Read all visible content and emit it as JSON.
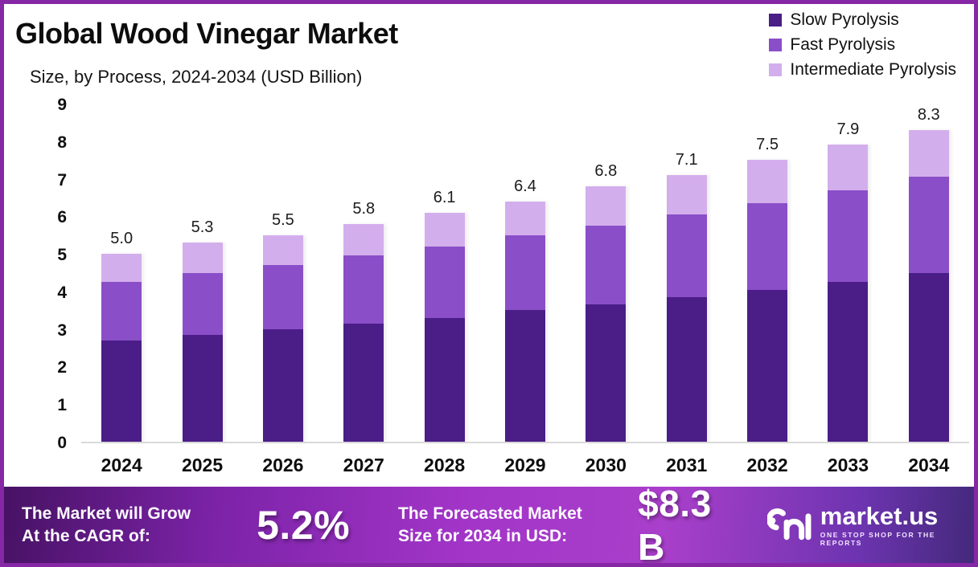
{
  "header": {
    "title": "Global Wood Vinegar Market",
    "subtitle": "Size, by Process, 2024-2034 (USD Billion)"
  },
  "chart_data": {
    "type": "bar",
    "stacked": true,
    "title": "Global Wood Vinegar Market Size, by Process, 2024-2034 (USD Billion)",
    "categories": [
      "2024",
      "2025",
      "2026",
      "2027",
      "2028",
      "2029",
      "2030",
      "2031",
      "2032",
      "2033",
      "2034"
    ],
    "series": [
      {
        "name": "Slow Pyrolysis",
        "color": "#4a1d87",
        "values": [
          2.7,
          2.85,
          3.0,
          3.15,
          3.3,
          3.5,
          3.65,
          3.85,
          4.05,
          4.25,
          4.5
        ]
      },
      {
        "name": "Fast Pyrolysis",
        "color": "#8a4ec8",
        "values": [
          1.55,
          1.65,
          1.7,
          1.8,
          1.9,
          2.0,
          2.1,
          2.2,
          2.3,
          2.45,
          2.55
        ]
      },
      {
        "name": "Intermediate Pyrolysis",
        "color": "#d3aeec",
        "values": [
          0.75,
          0.8,
          0.8,
          0.85,
          0.9,
          0.9,
          1.05,
          1.05,
          1.15,
          1.2,
          1.25
        ]
      }
    ],
    "totals": [
      "5.0",
      "5.3",
      "5.5",
      "5.8",
      "6.1",
      "6.4",
      "6.8",
      "7.1",
      "7.5",
      "7.9",
      "8.3"
    ],
    "ylabel": "",
    "xlabel": "",
    "ylim": [
      0,
      9
    ],
    "yticks": [
      0,
      1,
      2,
      3,
      4,
      5,
      6,
      7,
      8,
      9
    ],
    "grid": false,
    "legend_position": "top-right"
  },
  "footer": {
    "cagr_label_line1": "The Market will Grow",
    "cagr_label_line2": "At the CAGR of:",
    "cagr_value": "5.2%",
    "forecast_label_line1": "The Forecasted Market",
    "forecast_label_line2": "Size for 2034 in USD:",
    "forecast_value": "$8.3 B",
    "brand_name": "market.us",
    "brand_tagline": "ONE STOP SHOP FOR THE REPORTS"
  },
  "colors": {
    "slow_pyrolysis": "#4a1d87",
    "fast_pyrolysis": "#8a4ec8",
    "intermediate_pyrolysis": "#d3aeec",
    "frame_border": "#8627a5",
    "axis_line": "#dadada",
    "footer_gradient_left": "#471264",
    "footer_gradient_mid": "#a93fca",
    "footer_gradient_right": "#43297b",
    "text": "#0d0d0d",
    "footer_text": "#ffffff"
  }
}
